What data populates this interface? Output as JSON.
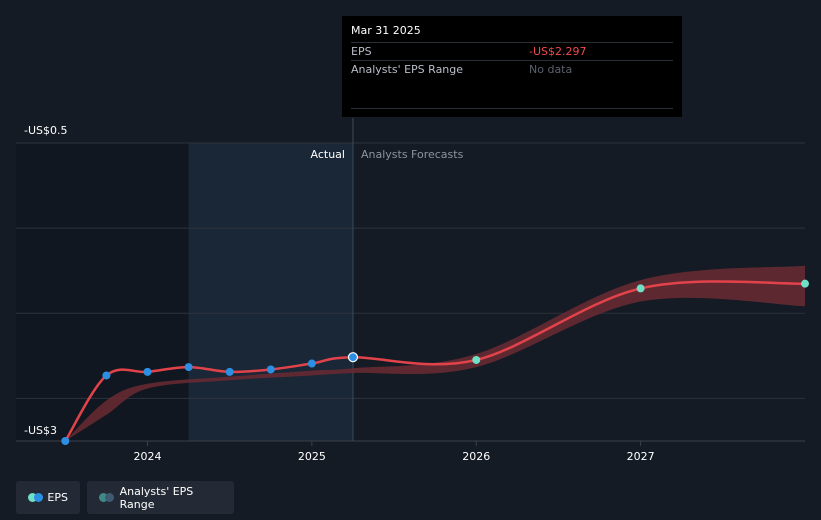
{
  "tooltip": {
    "date": "Mar 31 2025",
    "eps_label": "EPS",
    "eps_value": "-US$2.297",
    "range_label": "Analysts' EPS Range",
    "range_value": "No data"
  },
  "colors": {
    "background": "#151b24",
    "actual_shade": "#1a2736",
    "eps_line": "#e2434a",
    "range_band": "#6b2a33",
    "actual_marker": "#2d8fe3",
    "forecast_marker": "#6fe0c5"
  },
  "legend": {
    "eps": "EPS",
    "range": "Analysts' EPS Range"
  },
  "chart_data": {
    "type": "line",
    "divider_labels": {
      "actual": "Actual",
      "forecast": "Analysts Forecasts"
    },
    "y_tick_labels": {
      "top": "-US$0.5",
      "bottom": "-US$3"
    },
    "x_ticks": [
      {
        "label": "2024",
        "t": 2024.0
      },
      {
        "label": "2025",
        "t": 2025.0
      },
      {
        "label": "2026",
        "t": 2026.0
      },
      {
        "label": "2027",
        "t": 2027.0
      }
    ],
    "xlim": [
      2023.2,
      2028.0
    ],
    "ylim": [
      -3.0,
      -0.5
    ],
    "grid": true,
    "highlight_start": 2024.25,
    "divider_at": 2025.25,
    "series": [
      {
        "name": "EPS",
        "values": [
          {
            "t": 2023.5,
            "v": -3.0,
            "kind": "actual"
          },
          {
            "t": 2023.75,
            "v": -2.45,
            "kind": "actual"
          },
          {
            "t": 2024.0,
            "v": -2.42,
            "kind": "actual"
          },
          {
            "t": 2024.25,
            "v": -2.38,
            "kind": "actual"
          },
          {
            "t": 2024.5,
            "v": -2.42,
            "kind": "actual"
          },
          {
            "t": 2024.75,
            "v": -2.4,
            "kind": "actual"
          },
          {
            "t": 2025.0,
            "v": -2.35,
            "kind": "actual"
          },
          {
            "t": 2025.25,
            "v": -2.297,
            "kind": "actual"
          },
          {
            "t": 2026.0,
            "v": -2.32,
            "kind": "forecast"
          },
          {
            "t": 2027.0,
            "v": -1.72,
            "kind": "forecast"
          },
          {
            "t": 2028.0,
            "v": -1.68,
            "kind": "forecast"
          }
        ]
      }
    ],
    "range_band": [
      {
        "t": 2023.5,
        "low": -3.0,
        "high": -3.0
      },
      {
        "t": 2023.75,
        "low": -2.78,
        "high": -2.66
      },
      {
        "t": 2024.0,
        "low": -2.56,
        "high": -2.52
      },
      {
        "t": 2024.5,
        "low": -2.49,
        "high": -2.46
      },
      {
        "t": 2025.0,
        "low": -2.45,
        "high": -2.41
      },
      {
        "t": 2025.25,
        "low": -2.43,
        "high": -2.39
      },
      {
        "t": 2026.0,
        "low": -2.38,
        "high": -2.27
      },
      {
        "t": 2027.0,
        "low": -1.83,
        "high": -1.65
      },
      {
        "t": 2028.0,
        "low": -1.87,
        "high": -1.53
      }
    ]
  }
}
